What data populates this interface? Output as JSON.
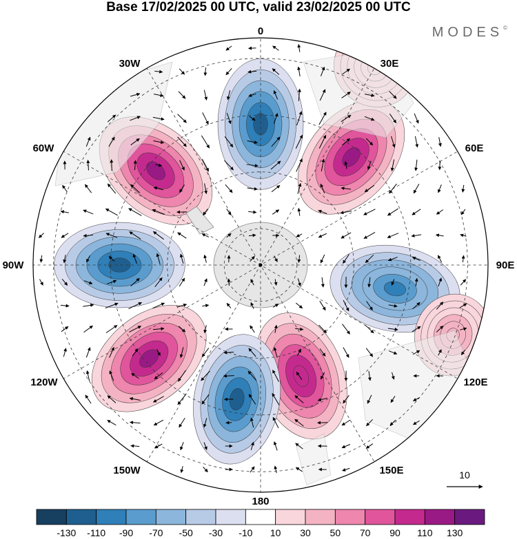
{
  "title": "Base 17/02/2025 00 UTC, valid 23/02/2025 00 UTC",
  "brand": "MODES",
  "brand_mark": "©",
  "longitude_labels": {
    "l0": "0",
    "l30e": "30E",
    "l60e": "60E",
    "l90e": "90E",
    "l120e": "120E",
    "l150e": "150E",
    "l180": "180",
    "l150w": "150W",
    "l120w": "120W",
    "l90w": "90W",
    "l60w": "60W",
    "l30w": "30W"
  },
  "vector_reference": "10",
  "colorbar": {
    "ticks": [
      "-130",
      "-110",
      "-90",
      "-70",
      "-50",
      "-30",
      "-10",
      "10",
      "30",
      "50",
      "70",
      "90",
      "110",
      "130"
    ],
    "colors": [
      "#173f5f",
      "#1f5f8f",
      "#2f7fb8",
      "#5a9ccd",
      "#8cb6dc",
      "#b8cbe6",
      "#dcdff0",
      "#ffffff",
      "#f9d6dc",
      "#f4b3c3",
      "#ee86ad",
      "#e0559b",
      "#c42a8e",
      "#9a1a85",
      "#6a1a7e"
    ]
  },
  "anomalies": [
    {
      "sign": "neg",
      "value": -120,
      "lon": 0,
      "colat": 0.62
    },
    {
      "sign": "pos",
      "value": 130,
      "lon": 40,
      "colat": 0.62
    },
    {
      "sign": "neg",
      "value": -100,
      "lon": 100,
      "colat": 0.6
    },
    {
      "sign": "pos",
      "value": 110,
      "lon": 160,
      "colat": 0.52
    },
    {
      "sign": "neg",
      "value": -110,
      "lon": 190,
      "colat": 0.6
    },
    {
      "sign": "pos",
      "value": 120,
      "lon": 230,
      "colat": 0.64
    },
    {
      "sign": "neg",
      "value": -110,
      "lon": 270,
      "colat": 0.62
    },
    {
      "sign": "pos",
      "value": 120,
      "lon": 312,
      "colat": 0.62
    },
    {
      "sign": "pos",
      "value": 50,
      "lon": 110,
      "colat": 0.9
    },
    {
      "sign": "pos",
      "value": 30,
      "lon": 30,
      "colat": 1.0
    }
  ]
}
